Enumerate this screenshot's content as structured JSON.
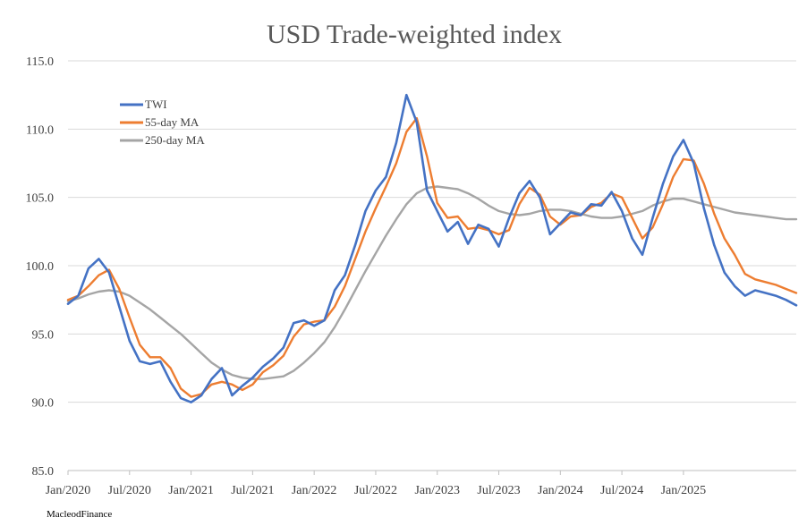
{
  "chart_data": {
    "type": "line",
    "title": "USD Trade-weighted index",
    "source": "MacleodFinance",
    "ylim": [
      85.0,
      115.0
    ],
    "y_ticks": [
      "85.0",
      "90.0",
      "95.0",
      "100.0",
      "105.0",
      "110.0",
      "115.0"
    ],
    "x_ticks": [
      "Jan/2020",
      "Jul/2020",
      "Jan/2021",
      "Jul/2021",
      "Jan/2022",
      "Jul/2022",
      "Jan/2023",
      "Jul/2023",
      "Jan/2024",
      "Jul/2024",
      "Jan/2025"
    ],
    "x_range": [
      "2020-01",
      "2025-12"
    ],
    "grid": "horizontal",
    "legend_position": "top-left",
    "series": [
      {
        "name": "TWI",
        "color": "#4472c4",
        "x": [
          "2020-01",
          "2020-02",
          "2020-03",
          "2020-04",
          "2020-05",
          "2020-06",
          "2020-07",
          "2020-08",
          "2020-09",
          "2020-10",
          "2020-11",
          "2020-12",
          "2021-01",
          "2021-02",
          "2021-03",
          "2021-04",
          "2021-05",
          "2021-06",
          "2021-07",
          "2021-08",
          "2021-09",
          "2021-10",
          "2021-11",
          "2021-12",
          "2022-01",
          "2022-02",
          "2022-03",
          "2022-04",
          "2022-05",
          "2022-06",
          "2022-07",
          "2022-08",
          "2022-09",
          "2022-10",
          "2022-11",
          "2022-12",
          "2023-01",
          "2023-02",
          "2023-03",
          "2023-04",
          "2023-05",
          "2023-06",
          "2023-07",
          "2023-08",
          "2023-09",
          "2023-10",
          "2023-11",
          "2023-12",
          "2024-01",
          "2024-02",
          "2024-03",
          "2024-04",
          "2024-05",
          "2024-06",
          "2024-07",
          "2024-08",
          "2024-09",
          "2024-10",
          "2024-11",
          "2024-12",
          "2025-01",
          "2025-02",
          "2025-03",
          "2025-04",
          "2025-05",
          "2025-06",
          "2025-07",
          "2025-08",
          "2025-09",
          "2025-10",
          "2025-11",
          "2025-12"
        ],
        "values": [
          97.2,
          97.8,
          99.8,
          100.5,
          99.5,
          97.0,
          94.5,
          93.0,
          92.8,
          93.0,
          91.5,
          90.3,
          90.0,
          90.5,
          91.7,
          92.5,
          90.5,
          91.2,
          91.8,
          92.6,
          93.2,
          94.0,
          95.8,
          96.0,
          95.6,
          96.0,
          98.2,
          99.3,
          101.5,
          104.0,
          105.5,
          106.5,
          109.0,
          112.5,
          110.5,
          105.5,
          104.0,
          102.5,
          103.2,
          101.6,
          103.0,
          102.7,
          101.4,
          103.5,
          105.3,
          106.2,
          105.0,
          102.3,
          103.1,
          103.9,
          103.7,
          104.5,
          104.4,
          105.4,
          104.0,
          102.0,
          100.8,
          103.5,
          106.0,
          108.0,
          109.2,
          107.5,
          104.2,
          101.5,
          99.5,
          98.5,
          97.8,
          98.2,
          98.0,
          97.8,
          97.5,
          97.1
        ]
      },
      {
        "name": "55-day MA",
        "color": "#ed7d31",
        "x": [
          "2020-01",
          "2020-02",
          "2020-03",
          "2020-04",
          "2020-05",
          "2020-06",
          "2020-07",
          "2020-08",
          "2020-09",
          "2020-10",
          "2020-11",
          "2020-12",
          "2021-01",
          "2021-02",
          "2021-03",
          "2021-04",
          "2021-05",
          "2021-06",
          "2021-07",
          "2021-08",
          "2021-09",
          "2021-10",
          "2021-11",
          "2021-12",
          "2022-01",
          "2022-02",
          "2022-03",
          "2022-04",
          "2022-05",
          "2022-06",
          "2022-07",
          "2022-08",
          "2022-09",
          "2022-10",
          "2022-11",
          "2022-12",
          "2023-01",
          "2023-02",
          "2023-03",
          "2023-04",
          "2023-05",
          "2023-06",
          "2023-07",
          "2023-08",
          "2023-09",
          "2023-10",
          "2023-11",
          "2023-12",
          "2024-01",
          "2024-02",
          "2024-03",
          "2024-04",
          "2024-05",
          "2024-06",
          "2024-07",
          "2024-08",
          "2024-09",
          "2024-10",
          "2024-11",
          "2024-12",
          "2025-01",
          "2025-02",
          "2025-03",
          "2025-04",
          "2025-05",
          "2025-06",
          "2025-07",
          "2025-08",
          "2025-09",
          "2025-10",
          "2025-11",
          "2025-12"
        ],
        "values": [
          97.5,
          97.8,
          98.5,
          99.3,
          99.7,
          98.3,
          96.2,
          94.2,
          93.3,
          93.3,
          92.5,
          91.0,
          90.4,
          90.6,
          91.3,
          91.5,
          91.3,
          90.9,
          91.3,
          92.2,
          92.7,
          93.4,
          94.8,
          95.7,
          95.9,
          96.0,
          97.0,
          98.5,
          100.5,
          102.5,
          104.2,
          105.8,
          107.5,
          109.8,
          110.8,
          108.0,
          104.6,
          103.5,
          103.6,
          102.7,
          102.8,
          102.6,
          102.3,
          102.6,
          104.5,
          105.7,
          105.2,
          103.6,
          103.0,
          103.6,
          103.7,
          104.3,
          104.6,
          105.3,
          105.0,
          103.5,
          102.0,
          102.8,
          104.5,
          106.5,
          107.8,
          107.7,
          106.0,
          103.8,
          102.0,
          100.8,
          99.4,
          99.0,
          98.8,
          98.6,
          98.3,
          98.0
        ]
      },
      {
        "name": "250-day MA",
        "color": "#a5a5a5",
        "x": [
          "2020-01",
          "2020-02",
          "2020-03",
          "2020-04",
          "2020-05",
          "2020-06",
          "2020-07",
          "2020-08",
          "2020-09",
          "2020-10",
          "2020-11",
          "2020-12",
          "2021-01",
          "2021-02",
          "2021-03",
          "2021-04",
          "2021-05",
          "2021-06",
          "2021-07",
          "2021-08",
          "2021-09",
          "2021-10",
          "2021-11",
          "2021-12",
          "2022-01",
          "2022-02",
          "2022-03",
          "2022-04",
          "2022-05",
          "2022-06",
          "2022-07",
          "2022-08",
          "2022-09",
          "2022-10",
          "2022-11",
          "2022-12",
          "2023-01",
          "2023-02",
          "2023-03",
          "2023-04",
          "2023-05",
          "2023-06",
          "2023-07",
          "2023-08",
          "2023-09",
          "2023-10",
          "2023-11",
          "2023-12",
          "2024-01",
          "2024-02",
          "2024-03",
          "2024-04",
          "2024-05",
          "2024-06",
          "2024-07",
          "2024-08",
          "2024-09",
          "2024-10",
          "2024-11",
          "2024-12",
          "2025-01",
          "2025-02",
          "2025-03",
          "2025-04",
          "2025-05",
          "2025-06",
          "2025-07",
          "2025-08",
          "2025-09",
          "2025-10",
          "2025-11",
          "2025-12"
        ],
        "values": [
          97.4,
          97.6,
          97.9,
          98.1,
          98.2,
          98.1,
          97.8,
          97.3,
          96.8,
          96.2,
          95.6,
          95.0,
          94.3,
          93.6,
          92.9,
          92.4,
          92.0,
          91.8,
          91.7,
          91.7,
          91.8,
          91.9,
          92.3,
          92.9,
          93.6,
          94.4,
          95.5,
          96.8,
          98.2,
          99.6,
          100.9,
          102.2,
          103.4,
          104.5,
          105.3,
          105.7,
          105.8,
          105.7,
          105.6,
          105.3,
          104.9,
          104.4,
          104.0,
          103.8,
          103.7,
          103.8,
          104.0,
          104.1,
          104.1,
          104.0,
          103.8,
          103.6,
          103.5,
          103.5,
          103.6,
          103.8,
          104.0,
          104.4,
          104.7,
          104.9,
          104.9,
          104.7,
          104.5,
          104.3,
          104.1,
          103.9,
          103.8,
          103.7,
          103.6,
          103.5,
          103.4,
          103.4
        ]
      }
    ]
  }
}
